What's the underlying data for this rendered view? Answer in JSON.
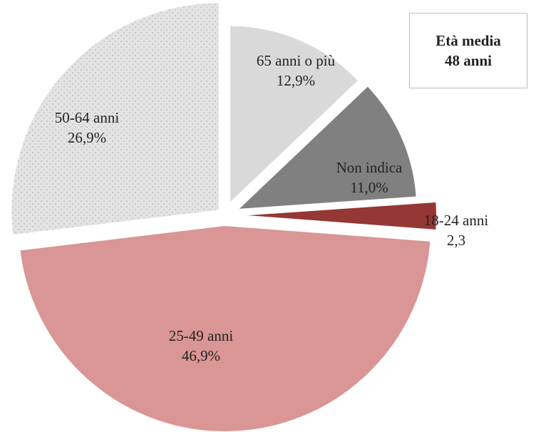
{
  "chart_data": {
    "type": "pie",
    "title": "",
    "exploded": true,
    "slices": [
      {
        "category": "65 anni o più",
        "value": 12.9,
        "value_label": "12,9%",
        "color": "#d9d9d9"
      },
      {
        "category": "Non indica",
        "value": 11.0,
        "value_label": "11,0%",
        "color": "#808080"
      },
      {
        "category": "18-24 anni",
        "value": 2.3,
        "value_label": "2,3",
        "color": "#953735"
      },
      {
        "category": "25-49 anni",
        "value": 46.9,
        "value_label": "46,9%",
        "color": "#d99694"
      },
      {
        "category": "50-64 anni",
        "value": 26.9,
        "value_label": "26,9%",
        "color": "#e3e3e3",
        "pattern": "dots"
      }
    ]
  },
  "info_box": {
    "line1": "Età media",
    "line2": "48 anni"
  }
}
